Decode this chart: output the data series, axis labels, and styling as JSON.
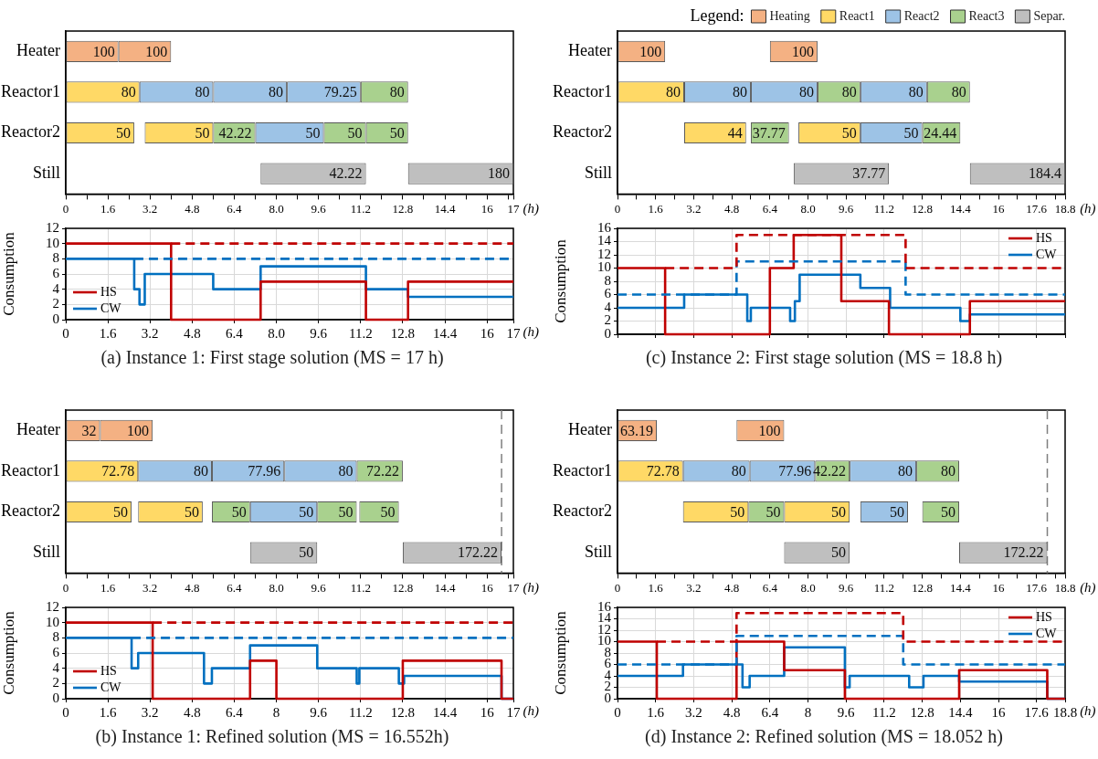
{
  "chart_data": [
    {
      "type": "bar",
      "orientation": "horizontal",
      "xlabel": "(h)",
      "grid": false,
      "categories": [
        "Heater",
        "Reactor1",
        "Reactor2",
        "Still"
      ],
      "xlim": [
        0,
        17
      ],
      "xticks": [
        0,
        {
          "value": 0.8,
          "label": null
        },
        1.6,
        {
          "value": 2.4,
          "label": null
        },
        3.2,
        {
          "value": 4,
          "label": null
        },
        4.8,
        {
          "value": 5.6,
          "label": null
        },
        6.4,
        {
          "value": 7.2,
          "label": null
        },
        {
          "value": 8,
          "label": "8.0"
        },
        {
          "value": 8.8,
          "label": null
        },
        9.6,
        {
          "value": 10.4,
          "label": null
        },
        11.2,
        {
          "value": 12,
          "label": null
        },
        12.8,
        {
          "value": 13.6,
          "label": null
        },
        14.4,
        {
          "value": 15.2,
          "label": null
        },
        16,
        {
          "value": 16.8,
          "label": null
        },
        17
      ],
      "series": [
        {
          "base": [
            0,
            0,
            0,
            7.4
          ],
          "values": [
            2,
            2.8,
            2.6,
            4
          ],
          "colors": [
            "#f4b183",
            "#ffd966",
            "#ffd966",
            "#bfbfbf"
          ]
        },
        {
          "base": [
            2,
            2.8,
            3,
            13
          ],
          "values": [
            2,
            2.8,
            2.6,
            4
          ],
          "colors": [
            "#f4b183",
            "#9dc3e6",
            "#ffd966",
            "#bfbfbf"
          ]
        },
        {
          "base": [
            null,
            5.6,
            5.6,
            null
          ],
          "values": [
            null,
            2.8,
            1.6,
            null
          ],
          "colors": [
            null,
            "#9dc3e6",
            "#a9d18e",
            null
          ]
        },
        {
          "base": [
            null,
            8.4,
            7.2,
            null
          ],
          "values": [
            null,
            2.8,
            2.6,
            null
          ],
          "colors": [
            null,
            "#9dc3e6",
            "#9dc3e6",
            null
          ]
        },
        {
          "base": [
            null,
            11.2,
            9.8,
            null
          ],
          "values": [
            null,
            1.8,
            1.6,
            null
          ],
          "colors": [
            null,
            "#a9d18e",
            "#a9d18e",
            null
          ]
        },
        {
          "base": [
            null,
            null,
            11.4,
            null
          ],
          "values": [
            null,
            null,
            1.6,
            null
          ],
          "colors": [
            null,
            null,
            "#a9d18e",
            null
          ]
        }
      ],
      "annotations": [
        {
          "text": "100",
          "x": 2,
          "y": "Heater"
        },
        {
          "text": "100",
          "x": 4,
          "y": "Heater"
        },
        {
          "text": "80",
          "x": 2.8,
          "y": "Reactor1"
        },
        {
          "text": "80",
          "x": 5.6,
          "y": "Reactor1"
        },
        {
          "text": "80",
          "x": 8.4,
          "y": "Reactor1"
        },
        {
          "text": "79.25",
          "x": 11.2,
          "y": "Reactor1"
        },
        {
          "text": "80",
          "x": 13,
          "y": "Reactor1"
        },
        {
          "text": "50",
          "x": 2.6,
          "y": "Reactor2"
        },
        {
          "text": "50",
          "x": 5.6,
          "y": "Reactor2"
        },
        {
          "text": "42.22",
          "x": 7.2,
          "y": "Reactor2"
        },
        {
          "text": "50",
          "x": 9.8,
          "y": "Reactor2"
        },
        {
          "text": "50",
          "x": 11.4,
          "y": "Reactor2"
        },
        {
          "text": "50",
          "x": 13,
          "y": "Reactor2"
        },
        {
          "text": "42.22",
          "x": 11.4,
          "y": "Still"
        },
        {
          "text": "180",
          "x": 17,
          "y": "Still"
        }
      ]
    },
    {
      "type": "step",
      "ylabel": "Consumption",
      "xlabel": "(h)",
      "grid": true,
      "legend": "bottom left",
      "xlim": [
        0,
        17
      ],
      "ylim": [
        0,
        12
      ],
      "xticks": [
        0,
        1.6,
        3.2,
        4.8,
        6.4,
        {
          "value": 8,
          "label": "8.0"
        },
        9.6,
        11.2,
        12.8,
        14.4,
        16,
        17
      ],
      "yticks": [
        0,
        2,
        4,
        6,
        8,
        10,
        12
      ],
      "annotations": [
        "(a) Instance 1: First stage solution (MS = 17 h)"
      ],
      "series": [
        {
          "color": "#c00000",
          "line_style": "dashed",
          "x": [
            4,
            17
          ],
          "values": [
            10,
            10
          ]
        },
        {
          "color": "#0070c0",
          "line_style": "dashed",
          "x": [
            2.6,
            17
          ],
          "values": [
            8,
            8
          ]
        },
        {
          "name": "HS",
          "color": "#c00000",
          "x": [
            0,
            4,
            7.4,
            11.4,
            13,
            17
          ],
          "values": [
            10,
            0,
            5,
            0,
            5,
            5
          ]
        },
        {
          "name": "CW",
          "color": "#0070c0",
          "x": [
            0,
            2.6,
            2.8,
            3,
            5.6,
            7.4,
            11.4,
            13,
            17
          ],
          "values": [
            8,
            4,
            2,
            6,
            4,
            7,
            4,
            3,
            3
          ]
        }
      ]
    },
    {
      "type": "bar",
      "orientation": "horizontal",
      "xlabel": "(h)",
      "grid": false,
      "legend": "top right",
      "legend_title": "Legend:",
      "categories": [
        "Heater",
        "Reactor1",
        "Reactor2",
        "Still"
      ],
      "xlim": [
        0,
        18.8
      ],
      "xticks": [
        0,
        {
          "value": 0.8,
          "label": null
        },
        1.6,
        {
          "value": 2.4,
          "label": null
        },
        3.2,
        {
          "value": 4,
          "label": null
        },
        4.8,
        {
          "value": 5.6,
          "label": null
        },
        6.4,
        {
          "value": 7.2,
          "label": null
        },
        {
          "value": 8,
          "label": "8.0"
        },
        {
          "value": 8.8,
          "label": null
        },
        9.6,
        {
          "value": 10.4,
          "label": null
        },
        11.2,
        {
          "value": 12,
          "label": null
        },
        12.8,
        {
          "value": 13.6,
          "label": null
        },
        14.4,
        {
          "value": 15.2,
          "label": null
        },
        16,
        {
          "value": 16.8,
          "label": null
        },
        17.6,
        {
          "value": 18.4,
          "label": null
        },
        18.8
      ],
      "series": [
        {
          "base": [
            0,
            0,
            2.8,
            7.4
          ],
          "values": [
            2,
            2.8,
            2.6,
            4
          ],
          "colors": [
            "#f4b183",
            "#ffd966",
            "#ffd966",
            "#bfbfbf"
          ]
        },
        {
          "base": [
            6.4,
            2.8,
            5.6,
            14.8
          ],
          "values": [
            2,
            2.8,
            1.6,
            4
          ],
          "colors": [
            "#f4b183",
            "#9dc3e6",
            "#a9d18e",
            "#bfbfbf"
          ]
        },
        {
          "base": [
            null,
            5.6,
            7.6,
            null
          ],
          "values": [
            null,
            2.8,
            2.6,
            null
          ],
          "colors": [
            null,
            "#9dc3e6",
            "#ffd966",
            null
          ]
        },
        {
          "base": [
            null,
            8.4,
            10.2,
            null
          ],
          "values": [
            null,
            1.8,
            2.6,
            null
          ],
          "colors": [
            null,
            "#a9d18e",
            "#9dc3e6",
            null
          ]
        },
        {
          "base": [
            null,
            10.2,
            12.8,
            null
          ],
          "values": [
            null,
            2.8,
            1.6,
            null
          ],
          "colors": [
            null,
            "#9dc3e6",
            "#a9d18e",
            null
          ]
        },
        {
          "base": [
            null,
            13,
            null,
            null
          ],
          "values": [
            null,
            1.8,
            null,
            null
          ],
          "colors": [
            null,
            "#a9d18e",
            null,
            null
          ]
        },
        {
          "name": "Heating",
          "color": "#f4b183",
          "values": [
            null,
            null,
            null,
            null
          ]
        },
        {
          "name": "React1",
          "color": "#ffd966",
          "values": [
            null,
            null,
            null,
            null
          ]
        },
        {
          "name": "React2",
          "color": "#9dc3e6",
          "values": [
            null,
            null,
            null,
            null
          ]
        },
        {
          "name": "React3",
          "color": "#a9d18e",
          "values": [
            null,
            null,
            null,
            null
          ]
        },
        {
          "name": "Separ.",
          "color": "#bfbfbf",
          "values": [
            null,
            null,
            null,
            null
          ]
        }
      ],
      "annotations": [
        {
          "text": "100",
          "x": 2,
          "y": "Heater"
        },
        {
          "text": "100",
          "x": 8.4,
          "y": "Heater"
        },
        {
          "text": "80",
          "x": 2.8,
          "y": "Reactor1"
        },
        {
          "text": "80",
          "x": 5.6,
          "y": "Reactor1"
        },
        {
          "text": "80",
          "x": 8.4,
          "y": "Reactor1"
        },
        {
          "text": "80",
          "x": 10.2,
          "y": "Reactor1"
        },
        {
          "text": "80",
          "x": 13,
          "y": "Reactor1"
        },
        {
          "text": "80",
          "x": 14.8,
          "y": "Reactor1"
        },
        {
          "text": "44",
          "x": 5.4,
          "y": "Reactor2"
        },
        {
          "text": "37.77",
          "x": 7.2,
          "y": "Reactor2"
        },
        {
          "text": "50",
          "x": 10.2,
          "y": "Reactor2"
        },
        {
          "text": "50",
          "x": 12.8,
          "y": "Reactor2"
        },
        {
          "text": "24.44",
          "x": 14.4,
          "y": "Reactor2"
        },
        {
          "text": "37.77",
          "x": 11.4,
          "y": "Still"
        },
        {
          "text": "184.4",
          "x": 18.8,
          "y": "Still"
        }
      ]
    },
    {
      "type": "step",
      "ylabel": "Consumption",
      "grid": true,
      "legend": "top right",
      "tick_labels": "y",
      "xlim": [
        0,
        18.8
      ],
      "ylim": [
        0,
        16
      ],
      "xticks": [
        0,
        1.6,
        3.2,
        4.8,
        6.4,
        8,
        9.6,
        11.2,
        12.8,
        14.4,
        16,
        17.6,
        18.8
      ],
      "yticks": [
        0,
        2,
        4,
        6,
        8,
        10,
        12,
        14,
        16
      ],
      "annotations": [
        "(c) Instance 2: First stage solution (MS = 18.8 h)"
      ],
      "series": [
        {
          "color": "#c00000",
          "line_style": "dashed",
          "x": [
            2,
            5,
            12.1,
            18.8
          ],
          "values": [
            10,
            15,
            10,
            10
          ]
        },
        {
          "color": "#0070c0",
          "line_style": "dashed",
          "x": [
            0,
            5,
            12.1,
            18.8
          ],
          "values": [
            6,
            11,
            6,
            6
          ]
        },
        {
          "name": "HS",
          "color": "#c00000",
          "x": [
            0,
            2,
            6.4,
            7.4,
            9.4,
            11.4,
            14.8,
            18.8
          ],
          "values": [
            10,
            0,
            10,
            15,
            5,
            0,
            5,
            5
          ]
        },
        {
          "name": "CW",
          "color": "#0070c0",
          "x": [
            0,
            2.8,
            5.45,
            5.6,
            7.25,
            7.45,
            7.65,
            10.2,
            11.45,
            14.4,
            14.8,
            18.8
          ],
          "values": [
            4,
            6,
            2,
            4,
            2,
            5,
            9,
            7,
            4,
            2,
            3,
            3
          ]
        }
      ]
    },
    {
      "type": "bar",
      "orientation": "horizontal",
      "xlabel": "(h)",
      "grid": false,
      "categories": [
        "Heater",
        "Reactor1",
        "Reactor2",
        "Still"
      ],
      "xlim": [
        0,
        17
      ],
      "xticks": [
        0,
        {
          "value": 0.8,
          "label": null
        },
        1.6,
        {
          "value": 2.4,
          "label": null
        },
        3.2,
        {
          "value": 4,
          "label": null
        },
        4.8,
        {
          "value": 5.6,
          "label": null
        },
        6.4,
        {
          "value": 7.2,
          "label": null
        },
        {
          "value": 8,
          "label": "8.0"
        },
        {
          "value": 8.8,
          "label": null
        },
        9.6,
        {
          "value": 10.4,
          "label": null
        },
        11.2,
        {
          "value": 12,
          "label": null
        },
        12.8,
        {
          "value": 13.6,
          "label": null
        },
        14.4,
        {
          "value": 15.2,
          "label": null
        },
        16,
        {
          "value": 16.8,
          "label": null
        },
        17
      ],
      "ref_lines": [
        {
          "axis": "x",
          "value": 16.552,
          "color": "#7f7f7f",
          "line_style": "dashed"
        }
      ],
      "series": [
        {
          "base": [
            0,
            0,
            0,
            7
          ],
          "values": [
            1.3,
            2.75,
            2.5,
            2.55
          ],
          "colors": [
            "#f4b183",
            "#ffd966",
            "#ffd966",
            "#bfbfbf"
          ]
        },
        {
          "base": [
            1.3,
            2.75,
            2.75,
            12.8
          ],
          "values": [
            2,
            2.8,
            2.45,
            3.75
          ],
          "colors": [
            "#f4b183",
            "#9dc3e6",
            "#ffd966",
            "#bfbfbf"
          ]
        },
        {
          "base": [
            null,
            5.55,
            5.55,
            null
          ],
          "values": [
            null,
            2.75,
            1.45,
            null
          ],
          "colors": [
            null,
            "#9dc3e6",
            "#a9d18e",
            null
          ]
        },
        {
          "base": [
            null,
            8.3,
            7,
            null
          ],
          "values": [
            null,
            2.75,
            2.55,
            null
          ],
          "colors": [
            null,
            "#9dc3e6",
            "#9dc3e6",
            null
          ]
        },
        {
          "base": [
            null,
            11.05,
            9.55,
            null
          ],
          "values": [
            null,
            1.75,
            1.5,
            null
          ],
          "colors": [
            null,
            "#a9d18e",
            "#a9d18e",
            null
          ]
        },
        {
          "base": [
            null,
            null,
            11.15,
            null
          ],
          "values": [
            null,
            null,
            1.5,
            null
          ],
          "colors": [
            null,
            null,
            "#a9d18e",
            null
          ]
        }
      ],
      "annotations": [
        {
          "text": "32",
          "x": 1.3,
          "y": "Heater"
        },
        {
          "text": "100",
          "x": 3.3,
          "y": "Heater"
        },
        {
          "text": "72.78",
          "x": 2.75,
          "y": "Reactor1"
        },
        {
          "text": "80",
          "x": 5.55,
          "y": "Reactor1"
        },
        {
          "text": "77.96",
          "x": 8.3,
          "y": "Reactor1"
        },
        {
          "text": "80",
          "x": 11.05,
          "y": "Reactor1"
        },
        {
          "text": "72.22",
          "x": 12.8,
          "y": "Reactor1"
        },
        {
          "text": "50",
          "x": 2.5,
          "y": "Reactor2"
        },
        {
          "text": "50",
          "x": 5.2,
          "y": "Reactor2"
        },
        {
          "text": "50",
          "x": 7,
          "y": "Reactor2"
        },
        {
          "text": "50",
          "x": 9.55,
          "y": "Reactor2"
        },
        {
          "text": "50",
          "x": 11.05,
          "y": "Reactor2"
        },
        {
          "text": "50",
          "x": 12.65,
          "y": "Reactor2"
        },
        {
          "text": "50",
          "x": 9.55,
          "y": "Still"
        },
        {
          "text": "172.22",
          "x": 16.55,
          "y": "Still"
        }
      ]
    },
    {
      "type": "step",
      "ylabel": "Consumption",
      "xlabel": "(h)",
      "grid": true,
      "legend": "bottom left",
      "xlim": [
        0,
        17
      ],
      "ylim": [
        0,
        12
      ],
      "xticks": [
        0,
        1.6,
        3.2,
        4.8,
        6.4,
        8,
        9.6,
        11.2,
        12.8,
        14.4,
        16,
        17
      ],
      "yticks": [
        0,
        2,
        4,
        6,
        8,
        10,
        12
      ],
      "annotations": [
        "(b) Instance 1: Refined solution (MS = 16.552h)"
      ],
      "series": [
        {
          "color": "#c00000",
          "line_style": "dashed",
          "x": [
            3.3,
            17
          ],
          "values": [
            10,
            10
          ]
        },
        {
          "color": "#0070c0",
          "line_style": "dashed",
          "x": [
            2.5,
            17
          ],
          "values": [
            8,
            8
          ]
        },
        {
          "name": "HS",
          "color": "#c00000",
          "x": [
            0,
            3.3,
            7,
            8,
            12.8,
            16.55,
            17
          ],
          "values": [
            10,
            0,
            5,
            0,
            5,
            0,
            0
          ]
        },
        {
          "name": "CW",
          "color": "#0070c0",
          "x": [
            0,
            2.5,
            2.75,
            5.25,
            5.55,
            7,
            9.55,
            11.05,
            11.15,
            12.65,
            12.85,
            16.55,
            17
          ],
          "values": [
            8,
            4,
            6,
            2,
            4,
            7,
            4,
            2,
            4,
            2,
            3,
            0,
            0
          ]
        }
      ]
    },
    {
      "type": "bar",
      "orientation": "horizontal",
      "xlabel": "(h)",
      "grid": false,
      "categories": [
        "Heater",
        "Reactor1",
        "Reactor2",
        "Still"
      ],
      "xlim": [
        0,
        18.8
      ],
      "xticks": [
        0,
        {
          "value": 0.8,
          "label": null
        },
        1.6,
        {
          "value": 2.4,
          "label": null
        },
        3.2,
        {
          "value": 4,
          "label": null
        },
        4.8,
        {
          "value": 5.6,
          "label": null
        },
        6.4,
        {
          "value": 7.2,
          "label": null
        },
        {
          "value": 8,
          "label": "8.0"
        },
        {
          "value": 8.8,
          "label": null
        },
        9.6,
        {
          "value": 10.4,
          "label": null
        },
        11.2,
        {
          "value": 12,
          "label": null
        },
        12.8,
        {
          "value": 13.6,
          "label": null
        },
        14.4,
        {
          "value": 15.2,
          "label": null
        },
        16,
        {
          "value": 16.8,
          "label": null
        },
        17.6,
        {
          "value": 18.4,
          "label": null
        },
        18.8
      ],
      "ref_lines": [
        {
          "axis": "x",
          "value": 18.052,
          "color": "#7f7f7f",
          "line_style": "dashed"
        }
      ],
      "series": [
        {
          "base": [
            0,
            0,
            2.75,
            7
          ],
          "values": [
            1.65,
            2.75,
            2.75,
            2.75
          ],
          "colors": [
            "#f4b183",
            "#ffd966",
            "#ffd966",
            "#bfbfbf"
          ]
        },
        {
          "base": [
            5,
            2.75,
            5.5,
            14.35
          ],
          "values": [
            2,
            2.8,
            1.5,
            3.7
          ],
          "colors": [
            "#f4b183",
            "#9dc3e6",
            "#a9d18e",
            "#bfbfbf"
          ]
        },
        {
          "base": [
            null,
            5.55,
            7,
            null
          ],
          "values": [
            null,
            2.75,
            2.75,
            null
          ],
          "colors": [
            null,
            "#9dc3e6",
            "#ffd966",
            null
          ]
        },
        {
          "base": [
            null,
            8.3,
            10.2,
            null
          ],
          "values": [
            null,
            1.45,
            2,
            null
          ],
          "colors": [
            null,
            "#a9d18e",
            "#9dc3e6",
            null
          ]
        },
        {
          "base": [
            null,
            9.75,
            12.8,
            null
          ],
          "values": [
            null,
            2.8,
            1.55,
            null
          ],
          "colors": [
            null,
            "#9dc3e6",
            "#a9d18e",
            null
          ]
        },
        {
          "base": [
            null,
            12.55,
            null,
            null
          ],
          "values": [
            null,
            1.8,
            null,
            null
          ],
          "colors": [
            null,
            "#a9d18e",
            null,
            null
          ]
        }
      ],
      "annotations": [
        {
          "text": "63.19",
          "x": 1.65,
          "y": "Heater"
        },
        {
          "text": "100",
          "x": 7,
          "y": "Heater"
        },
        {
          "text": "72.78",
          "x": 2.75,
          "y": "Reactor1"
        },
        {
          "text": "80",
          "x": 5.55,
          "y": "Reactor1"
        },
        {
          "text": "77.96",
          "x": 8.3,
          "y": "Reactor1"
        },
        {
          "text": "42.22",
          "x": 9.75,
          "y": "Reactor1"
        },
        {
          "text": "80",
          "x": 12.55,
          "y": "Reactor1"
        },
        {
          "text": "80",
          "x": 14.35,
          "y": "Reactor1"
        },
        {
          "text": "50",
          "x": 5.5,
          "y": "Reactor2"
        },
        {
          "text": "50",
          "x": 7,
          "y": "Reactor2"
        },
        {
          "text": "50",
          "x": 9.75,
          "y": "Reactor2"
        },
        {
          "text": "50",
          "x": 12.2,
          "y": "Reactor2"
        },
        {
          "text": "50",
          "x": 14.35,
          "y": "Reactor2"
        },
        {
          "text": "50",
          "x": 9.75,
          "y": "Still"
        },
        {
          "text": "172.22",
          "x": 18.05,
          "y": "Still"
        }
      ]
    },
    {
      "type": "step",
      "ylabel": "Consumption",
      "xlabel": "(h)",
      "grid": true,
      "legend": "top right",
      "xlim": [
        0,
        18.8
      ],
      "ylim": [
        0,
        16
      ],
      "xticks": [
        0,
        1.6,
        3.2,
        4.8,
        6.4,
        8,
        9.6,
        11.2,
        12.8,
        14.4,
        16,
        17.6,
        18.8
      ],
      "yticks": [
        0,
        2,
        4,
        6,
        8,
        10,
        12,
        14,
        16
      ],
      "annotations": [
        "(d) Instance 2: Refined solution (MS = 18.052 h)"
      ],
      "series": [
        {
          "color": "#c00000",
          "line_style": "dashed",
          "x": [
            1.65,
            5,
            12,
            18.8
          ],
          "values": [
            10,
            15,
            10,
            10
          ]
        },
        {
          "color": "#0070c0",
          "line_style": "dashed",
          "x": [
            0,
            5,
            12,
            18.8
          ],
          "values": [
            6,
            11,
            6,
            6
          ]
        },
        {
          "name": "HS",
          "color": "#c00000",
          "x": [
            0,
            1.65,
            5,
            7,
            9.55,
            14.35,
            18.05,
            18.8
          ],
          "values": [
            10,
            0,
            10,
            5,
            0,
            5,
            0,
            0
          ]
        },
        {
          "name": "CW",
          "color": "#0070c0",
          "x": [
            0,
            2.75,
            5.25,
            5.55,
            7,
            9.55,
            9.75,
            12.25,
            12.85,
            14.35,
            18.05,
            18.8
          ],
          "values": [
            4,
            6,
            2,
            4,
            9,
            2,
            4,
            2,
            4,
            3,
            0,
            0
          ]
        }
      ]
    }
  ]
}
